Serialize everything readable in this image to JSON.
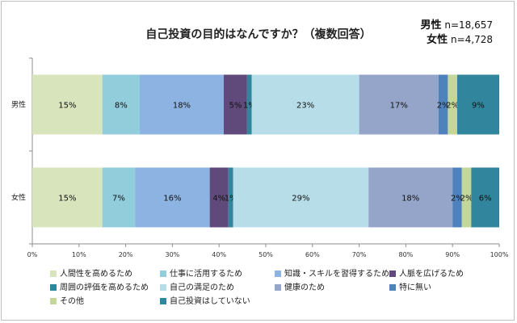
{
  "chart_data": {
    "type": "bar",
    "orientation": "horizontal",
    "stacked": "percent",
    "title": "自己投資の目的はなんですか？（複数回答）",
    "sample_sizes": [
      {
        "label": "男性",
        "value": "n=18,657"
      },
      {
        "label": "女性",
        "value": "n=4,728"
      }
    ],
    "categories": [
      "男性",
      "女性"
    ],
    "xlim": [
      0,
      100
    ],
    "xticks": [
      "0%",
      "10%",
      "20%",
      "30%",
      "40%",
      "50%",
      "60%",
      "70%",
      "80%",
      "90%",
      "100%"
    ],
    "series": [
      {
        "name": "人間性を高めるため",
        "color": "#d8e4bc",
        "values": [
          15,
          15
        ],
        "labels": [
          "15%",
          "15%"
        ]
      },
      {
        "name": "仕事に活用するため",
        "color": "#92cddc",
        "values": [
          8,
          7
        ],
        "labels": [
          "8%",
          "7%"
        ]
      },
      {
        "name": "知識・スキルを習得するため",
        "color": "#8db3e2",
        "values": [
          18,
          16
        ],
        "labels": [
          "18%",
          "16%"
        ]
      },
      {
        "name": "人脈を広げるため",
        "color": "#604a7b",
        "values": [
          5,
          4
        ],
        "labels": [
          "5%",
          "4%"
        ]
      },
      {
        "name": "周囲の評価を高めるため",
        "color": "#31859c",
        "values": [
          1,
          1
        ],
        "labels": [
          "1%",
          "1%"
        ]
      },
      {
        "name": "自己の満足のため",
        "color": "#b7dee8",
        "values": [
          23,
          29
        ],
        "labels": [
          "23%",
          "29%"
        ]
      },
      {
        "name": "健康のため",
        "color": "#95a5c9",
        "values": [
          17,
          18
        ],
        "labels": [
          "17%",
          "18%"
        ]
      },
      {
        "name": "特に無い",
        "color": "#4f81bd",
        "values": [
          2,
          2
        ],
        "labels": [
          "2%",
          "2%"
        ]
      },
      {
        "name": "その他",
        "color": "#c4d79b",
        "values": [
          2,
          2
        ],
        "labels": [
          "2%",
          "2%"
        ]
      },
      {
        "name": "自己投資はしていない",
        "color": "#31859c",
        "values": [
          9,
          6
        ],
        "labels": [
          "9%",
          "6%"
        ]
      }
    ]
  }
}
